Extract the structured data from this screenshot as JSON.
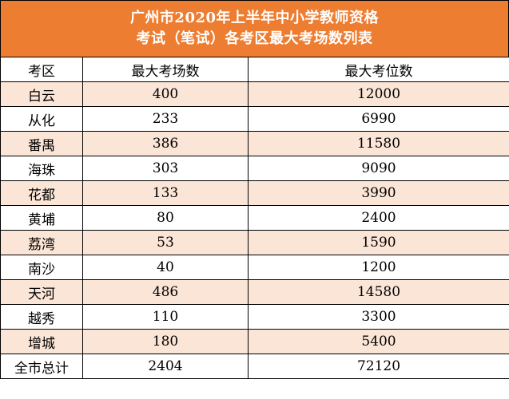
{
  "title": {
    "line1": "广州市2020年上半年中小学教师资格",
    "line2": "考试（笔试）各考区最大考场数列表"
  },
  "colors": {
    "header_bg": "#ed7d31",
    "header_text": "#ffffff",
    "row_shade": "#fbe5d6",
    "border": "#000000"
  },
  "table": {
    "headers": [
      "考区",
      "最大考场数",
      "最大考位数"
    ],
    "rows": [
      {
        "district": "白云",
        "rooms": "400",
        "seats": "12000"
      },
      {
        "district": "从化",
        "rooms": "233",
        "seats": "6990"
      },
      {
        "district": "番禺",
        "rooms": "386",
        "seats": "11580"
      },
      {
        "district": "海珠",
        "rooms": "303",
        "seats": "9090"
      },
      {
        "district": "花都",
        "rooms": "133",
        "seats": "3990"
      },
      {
        "district": "黄埔",
        "rooms": "80",
        "seats": "2400"
      },
      {
        "district": "荔湾",
        "rooms": "53",
        "seats": "1590"
      },
      {
        "district": "南沙",
        "rooms": "40",
        "seats": "1200"
      },
      {
        "district": "天河",
        "rooms": "486",
        "seats": "14580"
      },
      {
        "district": "越秀",
        "rooms": "110",
        "seats": "3300"
      },
      {
        "district": "增城",
        "rooms": "180",
        "seats": "5400"
      }
    ],
    "total": {
      "district": "全市总计",
      "rooms": "2404",
      "seats": "72120"
    }
  }
}
